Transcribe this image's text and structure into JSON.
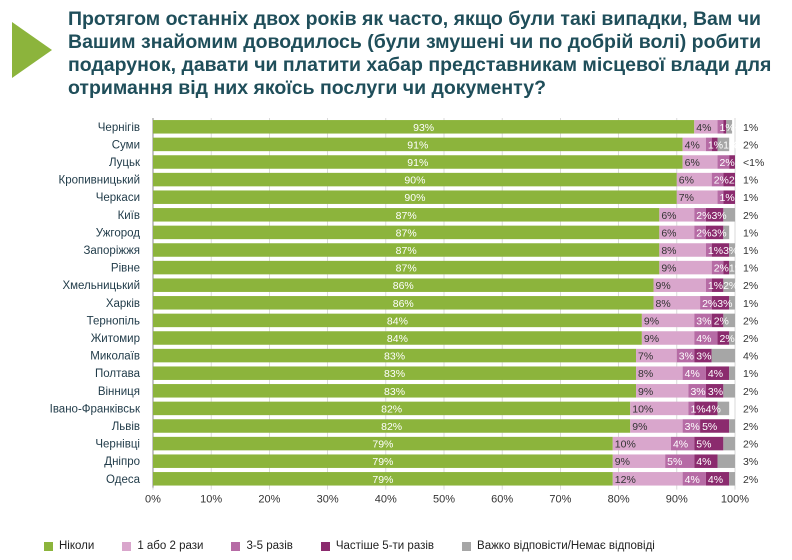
{
  "title": "Протягом останніх двох років як часто, якщо були такі випадки, Вам чи Вашим знайомим доводилось (були змушені чи по добрій волі) робити подарунок, давати чи платити хабар представникам місцевої влади для отримання від них якоїсь послуги чи документу?",
  "colors": {
    "title": "#1f4e5a",
    "accent_arrow": "#8cb43c",
    "never": "#8cb43c",
    "once_twice": "#d9a6cc",
    "three_five": "#b66ba5",
    "more_five": "#8b2b6e",
    "hard": "#a6a6a6"
  },
  "chart_data": {
    "type": "bar",
    "orientation": "horizontal",
    "stacked": true,
    "xlim": [
      0,
      100
    ],
    "x_ticks": [
      "0%",
      "10%",
      "20%",
      "30%",
      "40%",
      "50%",
      "60%",
      "70%",
      "80%",
      "90%",
      "100%"
    ],
    "grid": true,
    "legend_position": "bottom",
    "categories": [
      "Чернігів",
      "Суми",
      "Луцьк",
      "Кропивницький",
      "Черкаси",
      "Київ",
      "Ужгород",
      "Запоріжжя",
      "Рівне",
      "Хмельницький",
      "Харків",
      "Тернопіль",
      "Житомир",
      "Миколаїв",
      "Полтава",
      "Вінниця",
      "Івано-Франківськ",
      "Львів",
      "Чернівці",
      "Дніпро",
      "Одеса"
    ],
    "series": [
      {
        "name": "Ніколи",
        "color": "#8cb43c",
        "values": [
          93,
          91,
          91,
          90,
          90,
          87,
          87,
          87,
          87,
          86,
          86,
          84,
          84,
          83,
          83,
          83,
          82,
          82,
          79,
          79,
          79
        ],
        "labels": [
          "93%",
          "91%",
          "91%",
          "90%",
          "90%",
          "87%",
          "87%",
          "87%",
          "87%",
          "86%",
          "86%",
          "84%",
          "84%",
          "83%",
          "83%",
          "83%",
          "82%",
          "82%",
          "79%",
          "79%",
          "79%"
        ]
      },
      {
        "name": "1 або 2 рази",
        "color": "#d9a6cc",
        "values": [
          4,
          4,
          6,
          6,
          7,
          6,
          6,
          8,
          9,
          9,
          8,
          9,
          9,
          7,
          8,
          9,
          10,
          9,
          10,
          9,
          12
        ],
        "labels": [
          "4%",
          "4%",
          "6%",
          "6%",
          "7%",
          "6%",
          "6%",
          "8%",
          "9%",
          "9%",
          "8%",
          "9%",
          "9%",
          "7%",
          "8%",
          "9%",
          "10%",
          "9%",
          "10%",
          "9%",
          "12%"
        ]
      },
      {
        "name": "3-5 разів",
        "color": "#b66ba5",
        "values": [
          1,
          1,
          2,
          2,
          1,
          2,
          2,
          1,
          2,
          1,
          2,
          3,
          4,
          3,
          4,
          3,
          1,
          3,
          4,
          5,
          4
        ],
        "labels": [
          "1%",
          "1%",
          "2%",
          "2%",
          "1%",
          "2%",
          "2%",
          "1%",
          "2%",
          "1%",
          "2%",
          "3%",
          "4%",
          "3%",
          "4%",
          "3%",
          "1%",
          "3%",
          "4%",
          "5%",
          "4%"
        ]
      },
      {
        "name": "Частіше 5-ти разів",
        "color": "#8b2b6e",
        "values": [
          0.5,
          1,
          1,
          2,
          2,
          3,
          3,
          3,
          1,
          2,
          3,
          2,
          2,
          3,
          4,
          3,
          4,
          5,
          5,
          4,
          4
        ],
        "labels": [
          "<1%",
          "1%",
          "1%",
          "2%",
          "2%",
          "3%",
          "3%",
          "3%",
          "1%",
          "2%",
          "3%",
          "2%",
          "2%",
          "3%",
          "4%",
          "3%",
          "4%",
          "5%",
          "5%",
          "4%",
          "4%"
        ]
      },
      {
        "name": "Важко відповісти/Немає відповіді",
        "color": "#a6a6a6",
        "values": [
          1,
          2,
          0.5,
          1,
          1,
          2,
          1,
          1,
          1,
          2,
          1,
          2,
          2,
          4,
          1,
          2,
          2,
          2,
          2,
          3,
          2
        ],
        "labels": [
          "1%",
          "2%",
          "<1%",
          "1%",
          "1%",
          "2%",
          "1%",
          "1%",
          "1%",
          "2%",
          "1%",
          "2%",
          "2%",
          "4%",
          "1%",
          "2%",
          "2%",
          "2%",
          "2%",
          "3%",
          "2%"
        ]
      }
    ]
  }
}
